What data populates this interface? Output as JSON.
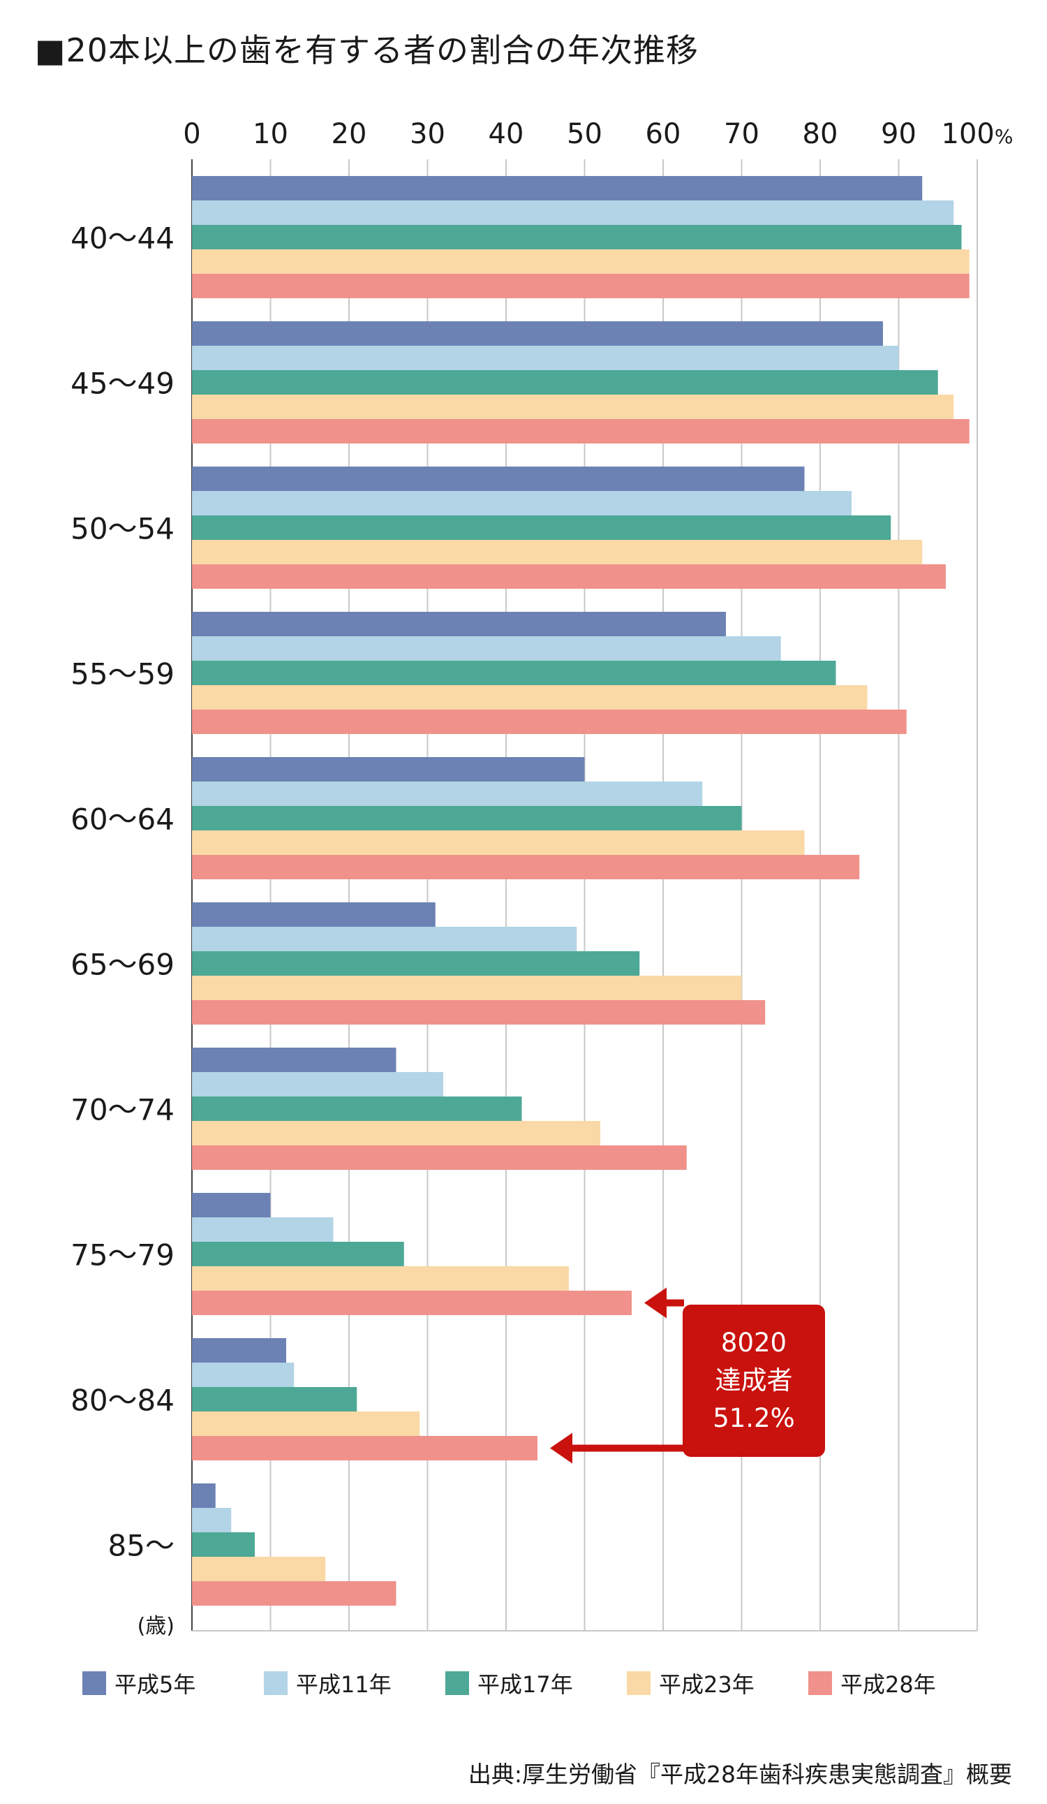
{
  "chart_data": {
    "type": "bar",
    "orientation": "horizontal",
    "title": "■20本以上の歯を有する者の割合の年次推移",
    "x_ticks": [
      "0",
      "10",
      "20",
      "30",
      "40",
      "50",
      "60",
      "70",
      "80",
      "90",
      "100"
    ],
    "x_unit": "%",
    "xlim": [
      0,
      100
    ],
    "y_unit": "(歳)",
    "grid": true,
    "legend_position": "bottom",
    "categories": [
      "40〜44",
      "45〜49",
      "50〜54",
      "55〜59",
      "60〜64",
      "65〜69",
      "70〜74",
      "75〜79",
      "80〜84",
      "85〜"
    ],
    "series": [
      {
        "name": "平成5年",
        "color": "#6c82b5",
        "values": [
          93,
          88,
          78,
          68,
          50,
          31,
          26,
          10,
          12,
          3
        ]
      },
      {
        "name": "平成11年",
        "color": "#b2d4e6",
        "values": [
          97,
          90,
          84,
          75,
          65,
          49,
          32,
          18,
          13,
          5
        ]
      },
      {
        "name": "平成17年",
        "color": "#4da895",
        "values": [
          98,
          95,
          89,
          82,
          70,
          57,
          42,
          27,
          21,
          8
        ]
      },
      {
        "name": "平成23年",
        "color": "#fad9a6",
        "values": [
          99,
          97,
          93,
          86,
          78,
          70,
          52,
          48,
          29,
          17
        ]
      },
      {
        "name": "平成28年",
        "color": "#f0918b",
        "values": [
          99,
          99,
          96,
          91,
          85,
          73,
          63,
          56,
          44,
          26
        ]
      }
    ],
    "annotation": {
      "lines": [
        "8020",
        "達成者",
        "51.2%"
      ],
      "color": "#c9110d",
      "points_to": [
        "75〜79",
        "80〜84"
      ]
    },
    "source": "出典:厚生労働省『平成28年歯科疾患実態調査』概要"
  }
}
